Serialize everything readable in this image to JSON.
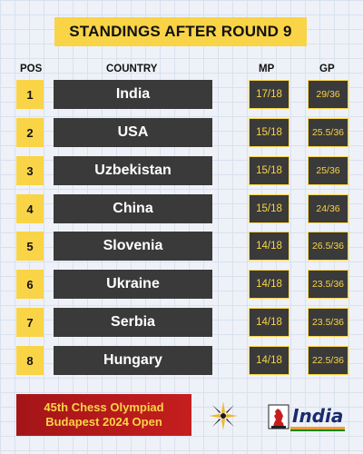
{
  "title": "STANDINGS AFTER ROUND 9",
  "headers": {
    "pos": "POS",
    "country": "COUNTRY",
    "mp": "MP",
    "gp": "GP"
  },
  "rows": [
    {
      "pos": "1",
      "country": "India",
      "mp": "17/18",
      "gp": "29/36"
    },
    {
      "pos": "2",
      "country": "USA",
      "mp": "15/18",
      "gp": "25.5/36"
    },
    {
      "pos": "3",
      "country": "Uzbekistan",
      "mp": "15/18",
      "gp": "25/36"
    },
    {
      "pos": "4",
      "country": "China",
      "mp": "15/18",
      "gp": "24/36"
    },
    {
      "pos": "5",
      "country": "Slovenia",
      "mp": "14/18",
      "gp": "26.5/36"
    },
    {
      "pos": "6",
      "country": "Ukraine",
      "mp": "14/18",
      "gp": "23.5/36"
    },
    {
      "pos": "7",
      "country": "Serbia",
      "mp": "14/18",
      "gp": "23.5/36"
    },
    {
      "pos": "8",
      "country": "Hungary",
      "mp": "14/18",
      "gp": "22.5/36"
    }
  ],
  "footer": {
    "line1": "45th Chess Olympiad",
    "line2": "Budapest 2024 Open"
  },
  "logos": {
    "right_text": "India"
  },
  "colors": {
    "accent": "#f9d447",
    "cell": "#3a3a3a",
    "footer": "#b81b1c"
  }
}
